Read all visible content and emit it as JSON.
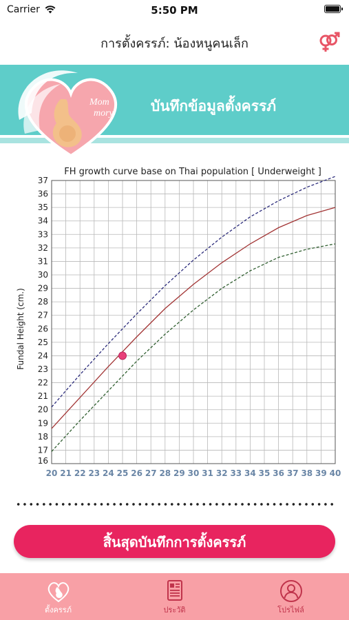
{
  "status_bar": {
    "carrier": "Carrier",
    "time": "5:50 PM"
  },
  "header": {
    "title": "การตั้งครรภ์: น้องหนูคนเล็ก",
    "gender_icon": "gender-symbol-icon"
  },
  "banner": {
    "title": "บันทึกข้อมูลตั้งครรภ์",
    "logo_text_1": "Mom",
    "logo_text_2": "mory"
  },
  "chart_data": {
    "type": "line",
    "title": "FH growth curve base on Thai population [ Underweight ]",
    "ylabel": "Fundal Height (cm.)",
    "xlabel": "",
    "xlim": [
      20,
      40
    ],
    "ylim": [
      16,
      37
    ],
    "x_ticks": [
      20,
      21,
      22,
      23,
      24,
      25,
      26,
      27,
      28,
      29,
      30,
      31,
      32,
      33,
      34,
      35,
      36,
      37,
      38,
      39,
      40
    ],
    "y_ticks": [
      16,
      17,
      18,
      19,
      20,
      21,
      22,
      23,
      24,
      25,
      26,
      27,
      28,
      29,
      30,
      31,
      32,
      33,
      34,
      35,
      36,
      37
    ],
    "grid": true,
    "series": [
      {
        "style": "dashed",
        "color": "#2a2a7a",
        "x": [
          20,
          22,
          24,
          26,
          28,
          30,
          32,
          34,
          36,
          38,
          40
        ],
        "values": [
          20.2,
          22.6,
          24.9,
          27.1,
          29.2,
          31.1,
          32.8,
          34.3,
          35.5,
          36.5,
          37.3
        ]
      },
      {
        "style": "solid",
        "color": "#a23434",
        "x": [
          20,
          22,
          24,
          26,
          28,
          30,
          32,
          34,
          36,
          38,
          40
        ],
        "values": [
          18.6,
          20.9,
          23.2,
          25.4,
          27.5,
          29.3,
          30.9,
          32.3,
          33.5,
          34.4,
          35.0
        ]
      },
      {
        "style": "dashed",
        "color": "#2f5e2f",
        "x": [
          20,
          22,
          24,
          26,
          28,
          30,
          32,
          34,
          36,
          38,
          40
        ],
        "values": [
          16.9,
          19.2,
          21.4,
          23.6,
          25.6,
          27.4,
          29.0,
          30.3,
          31.3,
          31.9,
          32.3
        ]
      }
    ],
    "points": [
      {
        "x": 25,
        "y": 24,
        "color": "#e8407a"
      }
    ]
  },
  "end_button": {
    "label": "สิ้นสุดบันทึกการตั้งครรภ์"
  },
  "tabs": [
    {
      "label": "ตั้งครรภ์",
      "icon": "pregnancy-heart-icon",
      "active": true
    },
    {
      "label": "ประวัติ",
      "icon": "document-icon",
      "active": false
    },
    {
      "label": "โปรไฟล์",
      "icon": "profile-icon",
      "active": false
    }
  ]
}
